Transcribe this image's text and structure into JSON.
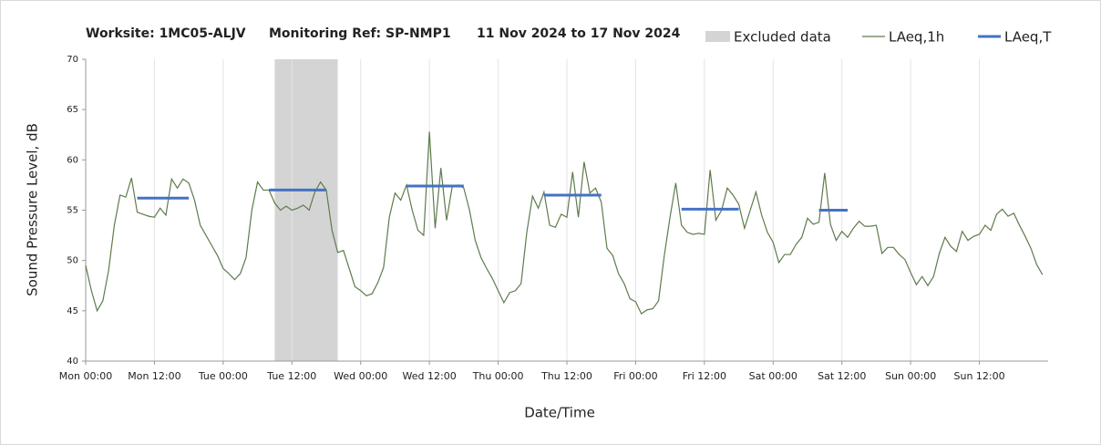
{
  "chart_data": {
    "type": "line",
    "title": [
      "Worksite: 1MC05-ALJV",
      "Monitoring Ref: SP-NMP1",
      "11 Nov 2024 to 17 Nov 2024"
    ],
    "x_label": "Date/Time",
    "y_label": "Sound Pressure Level, dB",
    "xlim": [
      0,
      168
    ],
    "xticks": [
      {
        "value": 0,
        "label": "Mon 00:00"
      },
      {
        "value": 12,
        "label": "Mon 12:00"
      },
      {
        "value": 24,
        "label": "Tue 00:00"
      },
      {
        "value": 36,
        "label": "Tue 12:00"
      },
      {
        "value": 48,
        "label": "Wed 00:00"
      },
      {
        "value": 60,
        "label": "Wed 12:00"
      },
      {
        "value": 72,
        "label": "Thu 00:00"
      },
      {
        "value": 84,
        "label": "Thu 12:00"
      },
      {
        "value": 96,
        "label": "Fri 00:00"
      },
      {
        "value": 108,
        "label": "Fri 12:00"
      },
      {
        "value": 120,
        "label": "Sat 00:00"
      },
      {
        "value": 132,
        "label": "Sat 12:00"
      },
      {
        "value": 144,
        "label": "Sun 00:00"
      },
      {
        "value": 156,
        "label": "Sun 12:00"
      }
    ],
    "ylim": [
      40,
      70
    ],
    "yticks": [
      40,
      45,
      50,
      55,
      60,
      65,
      70
    ],
    "grid": "x",
    "excluded": {
      "name": "Excluded data",
      "x": [
        33,
        44
      ],
      "color": "#d4d4d4"
    },
    "x": [
      0,
      1,
      2,
      3,
      4,
      5,
      6,
      7,
      8,
      9,
      10,
      11,
      12,
      13,
      14,
      15,
      16,
      17,
      18,
      19,
      20,
      21,
      22,
      23,
      24,
      25,
      26,
      27,
      28,
      29,
      30,
      31,
      32,
      33,
      34,
      35,
      36,
      37,
      38,
      39,
      40,
      41,
      42,
      43,
      44,
      45,
      46,
      47,
      48,
      49,
      50,
      51,
      52,
      53,
      54,
      55,
      56,
      57,
      58,
      59,
      60,
      61,
      62,
      63,
      64,
      65,
      66,
      67,
      68,
      69,
      70,
      71,
      72,
      73,
      74,
      75,
      76,
      77,
      78,
      79,
      80,
      81,
      82,
      83,
      84,
      85,
      86,
      87,
      88,
      89,
      90,
      91,
      92,
      93,
      94,
      95,
      96,
      97,
      98,
      99,
      100,
      101,
      102,
      103,
      104,
      105,
      106,
      107,
      108,
      109,
      110,
      111,
      112,
      113,
      114,
      115,
      116,
      117,
      118,
      119,
      120,
      121,
      122,
      123,
      124,
      125,
      126,
      127,
      128,
      129,
      130,
      131,
      132,
      133,
      134,
      135,
      136,
      137,
      138,
      139,
      140,
      141,
      142,
      143,
      144,
      145,
      146,
      147,
      148,
      149,
      150,
      151,
      152,
      153,
      154,
      155,
      156,
      157,
      158,
      159,
      160,
      161,
      162,
      163,
      164,
      165,
      166,
      167
    ],
    "series": [
      {
        "name": "LAeq,1h",
        "color": "#5e7b4c",
        "width": 1.2,
        "values": [
          49.5,
          47,
          45,
          46,
          49,
          53.5,
          56.5,
          56.3,
          58.2,
          54.8,
          54.6,
          54.4,
          54.3,
          55.2,
          54.5,
          58.1,
          57.2,
          58.1,
          57.7,
          56,
          53.5,
          52.5,
          51.5,
          50.5,
          49.2,
          48.7,
          48.1,
          48.7,
          50.3,
          55,
          57.8,
          57,
          57,
          55.7,
          55,
          55.4,
          55,
          55.2,
          55.5,
          55,
          56.8,
          57.8,
          57,
          53,
          50.8,
          51,
          49.2,
          47.4,
          47,
          46.5,
          46.7,
          47.8,
          49.3,
          54.3,
          56.7,
          56,
          57.5,
          55,
          53,
          52.5,
          62.8,
          53.2,
          59.2,
          54,
          57.4,
          57.5,
          57.2,
          55,
          52,
          50.3,
          49.2,
          48.2,
          47,
          45.8,
          46.8,
          47,
          47.7,
          52.8,
          56.4,
          55.2,
          56.8,
          53.5,
          53.3,
          54.6,
          54.3,
          58.8,
          54.3,
          59.8,
          56.7,
          57.2,
          55.8,
          51.2,
          50.5,
          48.7,
          47.7,
          46.2,
          45.9,
          44.7,
          45.1,
          45.2,
          46,
          50.5,
          54.3,
          57.7,
          53.5,
          52.8,
          52.6,
          52.7,
          52.6,
          59,
          54,
          55,
          57.2,
          56.5,
          55.6,
          53.2,
          55,
          56.8,
          54.5,
          52.8,
          51.8,
          49.8,
          50.6,
          50.6,
          51.6,
          52.3,
          54.2,
          53.6,
          53.8,
          58.7,
          53.6,
          52,
          52.9,
          52.3,
          53.2,
          53.9,
          53.4,
          53.4,
          53.5,
          50.7,
          51.3,
          51.3,
          50.6,
          50.1,
          48.8,
          47.6,
          48.4,
          47.5,
          48.4,
          50.7,
          52.3,
          51.4,
          50.9,
          52.9,
          52,
          52.4,
          52.6,
          53.5,
          53,
          54.6,
          55.1,
          54.4,
          54.7,
          53.5,
          52.4,
          51.2,
          49.6,
          48.6
        ]
      },
      {
        "name": "LAeq,T",
        "color": "#4472c4",
        "width": 3,
        "values": [
          null,
          null,
          null,
          null,
          null,
          null,
          null,
          null,
          null,
          56.2,
          56.2,
          56.2,
          56.2,
          56.2,
          56.2,
          56.2,
          56.2,
          56.2,
          56.2,
          null,
          null,
          null,
          null,
          null,
          null,
          null,
          null,
          null,
          null,
          null,
          null,
          null,
          57,
          57,
          57,
          57,
          57,
          57,
          57,
          57,
          57,
          57,
          57,
          null,
          null,
          null,
          null,
          null,
          null,
          null,
          null,
          null,
          null,
          null,
          null,
          null,
          57.4,
          57.4,
          57.4,
          57.4,
          57.4,
          57.4,
          57.4,
          57.4,
          57.4,
          57.4,
          57.4,
          null,
          null,
          null,
          null,
          null,
          null,
          null,
          null,
          null,
          null,
          null,
          null,
          null,
          56.5,
          56.5,
          56.5,
          56.5,
          56.5,
          56.5,
          56.5,
          56.5,
          56.5,
          56.5,
          56.5,
          null,
          null,
          null,
          null,
          null,
          null,
          null,
          null,
          null,
          null,
          null,
          null,
          null,
          55.1,
          55.1,
          55.1,
          55.1,
          55.1,
          55.1,
          55.1,
          55.1,
          55.1,
          55.1,
          55.1,
          null,
          null,
          null,
          null,
          null,
          null,
          null,
          null,
          null,
          null,
          null,
          null,
          null,
          55,
          55,
          55,
          55,
          55,
          55,
          null,
          null,
          null,
          null,
          null,
          null,
          null,
          null,
          null,
          null,
          null,
          null,
          null,
          null,
          null,
          null,
          null,
          null,
          null,
          null,
          null,
          null,
          null,
          null,
          null,
          null,
          null,
          null,
          null,
          null,
          null,
          null,
          null,
          null
        ]
      }
    ]
  }
}
